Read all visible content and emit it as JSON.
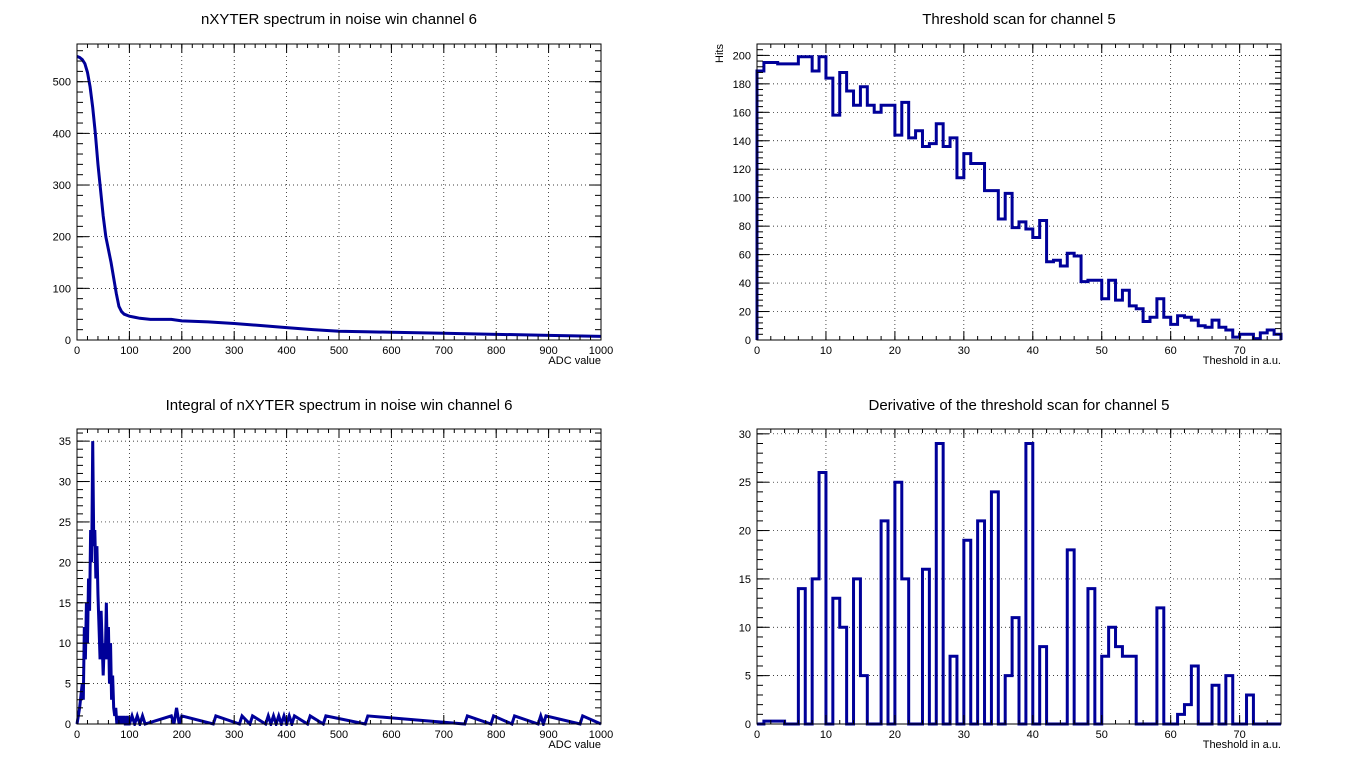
{
  "colors": {
    "line": "#000099",
    "background": "#ffffff",
    "frame": "#000000"
  },
  "chart_data": [
    {
      "id": "tl",
      "type": "line",
      "title": "nXYTER spectrum in noise win channel 6",
      "xlabel": "ADC value",
      "ylabel": "",
      "xlim": [
        0,
        1000
      ],
      "ylim": [
        0,
        573
      ],
      "xticks": [
        0,
        100,
        200,
        300,
        400,
        500,
        600,
        700,
        800,
        900,
        1000
      ],
      "yticks": [
        0,
        100,
        200,
        300,
        400,
        500
      ],
      "grid": true,
      "legend": "none",
      "series": [
        {
          "x": [
            0,
            5,
            10,
            15,
            20,
            25,
            30,
            35,
            40,
            45,
            50,
            55,
            60,
            65,
            70,
            75,
            80,
            85,
            90,
            95,
            100,
            110,
            120,
            140,
            160,
            180,
            200,
            250,
            300,
            350,
            400,
            450,
            500,
            550,
            600,
            700,
            800,
            900,
            1000
          ],
          "y": [
            549,
            547,
            543,
            535,
            518,
            490,
            450,
            400,
            340,
            290,
            240,
            200,
            175,
            150,
            120,
            90,
            65,
            55,
            50,
            48,
            46,
            44,
            42,
            40,
            40,
            40,
            37,
            35,
            32,
            28,
            24,
            20,
            17,
            16,
            15,
            13,
            11,
            9,
            7
          ]
        }
      ]
    },
    {
      "id": "tr",
      "type": "bar",
      "title": "Threshold scan for channel 5",
      "xlabel": "Theshold in a.u.",
      "ylabel": "Hits",
      "xlim": [
        0,
        76
      ],
      "ylim": [
        0,
        208
      ],
      "xticks": [
        0,
        10,
        20,
        30,
        40,
        50,
        60,
        70
      ],
      "yticks": [
        0,
        20,
        40,
        60,
        80,
        100,
        120,
        140,
        160,
        180,
        200
      ],
      "grid": true,
      "legend": "none",
      "series": [
        {
          "values": [
            189,
            195,
            195,
            194,
            194,
            194,
            199,
            199,
            189,
            199,
            184,
            158,
            188,
            175,
            165,
            178,
            165,
            160,
            165,
            165,
            144,
            167,
            142,
            147,
            136,
            138,
            152,
            136,
            142,
            114,
            131,
            124,
            124,
            105,
            105,
            85,
            103,
            79,
            83,
            78,
            72,
            84,
            55,
            56,
            52,
            61,
            59,
            41,
            42,
            42,
            29,
            42,
            28,
            35,
            24,
            22,
            13,
            16,
            29,
            16,
            11,
            17,
            16,
            14,
            10,
            9,
            14,
            9,
            7,
            2,
            4,
            4,
            1,
            5,
            7,
            4
          ]
        }
      ]
    },
    {
      "id": "bl",
      "type": "line",
      "title": "Integral of nXYTER spectrum in noise win channel 6",
      "xlabel": "ADC value",
      "ylabel": "",
      "xlim": [
        0,
        1000
      ],
      "ylim": [
        0,
        36.5
      ],
      "xticks": [
        0,
        100,
        200,
        300,
        400,
        500,
        600,
        700,
        800,
        900,
        1000
      ],
      "yticks": [
        0,
        5,
        10,
        15,
        20,
        25,
        30,
        35
      ],
      "grid": true,
      "legend": "none",
      "series": [
        {
          "x": [
            0,
            5,
            10,
            12,
            14,
            16,
            18,
            20,
            22,
            24,
            26,
            28,
            30,
            32,
            34,
            36,
            38,
            40,
            42,
            44,
            46,
            48,
            50,
            52,
            54,
            56,
            58,
            60,
            62,
            64,
            66,
            68,
            70,
            72,
            74,
            76,
            78,
            80,
            82,
            84,
            86,
            88,
            90,
            92,
            94,
            96,
            98,
            100,
            105,
            110,
            115,
            120,
            125,
            130,
            180,
            185,
            190,
            195,
            200,
            260,
            265,
            310,
            315,
            330,
            335,
            360,
            365,
            370,
            375,
            380,
            385,
            390,
            395,
            400,
            405,
            410,
            415,
            440,
            445,
            470,
            475,
            550,
            555,
            740,
            745,
            790,
            795,
            830,
            835,
            880,
            885,
            890,
            895,
            960,
            965,
            1000
          ],
          "y": [
            0,
            2,
            5,
            3,
            12,
            8,
            15,
            10,
            18,
            14,
            24,
            20,
            35,
            22,
            24,
            18,
            22,
            16,
            12,
            8,
            14,
            10,
            6,
            10,
            8,
            15,
            8,
            12,
            5,
            10,
            3,
            6,
            2,
            1,
            2,
            0,
            1,
            0,
            1,
            0,
            1,
            0,
            1,
            0,
            0,
            1,
            0,
            0,
            1,
            0,
            1,
            0,
            1,
            0,
            1,
            0,
            2,
            0,
            1,
            0,
            1,
            0,
            1,
            0,
            1,
            0,
            1,
            0,
            1,
            0,
            1,
            0,
            1,
            0,
            1,
            0,
            1,
            0,
            1,
            0,
            1,
            0,
            1,
            0,
            1,
            0,
            1,
            0,
            1,
            0,
            1,
            0,
            1,
            0,
            1,
            0
          ]
        }
      ]
    },
    {
      "id": "br",
      "type": "bar",
      "title": "Derivative of the threshold scan for channel 5",
      "xlabel": "Theshold in a.u.",
      "ylabel": "",
      "xlim": [
        0,
        76
      ],
      "ylim": [
        0,
        30.5
      ],
      "xticks": [
        0,
        10,
        20,
        30,
        40,
        50,
        60,
        70
      ],
      "yticks": [
        0,
        5,
        10,
        15,
        20,
        25,
        30
      ],
      "grid": true,
      "legend": "none",
      "series": [
        {
          "values": [
            0,
            0.3,
            0.3,
            0.3,
            0,
            0,
            14,
            0,
            15,
            26,
            0,
            13,
            10,
            0,
            15,
            5,
            0,
            0,
            21,
            0,
            25,
            15,
            0,
            0,
            16,
            0,
            29,
            0,
            7,
            0,
            19,
            0,
            21,
            0,
            24,
            0,
            5,
            11,
            0,
            29,
            0,
            8,
            0,
            0,
            0,
            18,
            0,
            0,
            14,
            0,
            7,
            10,
            8,
            7,
            7,
            0,
            0,
            0,
            12,
            0,
            0,
            1,
            2,
            6,
            0,
            0,
            4,
            0,
            5,
            0,
            0,
            3,
            0,
            0,
            0,
            0
          ]
        }
      ]
    }
  ]
}
